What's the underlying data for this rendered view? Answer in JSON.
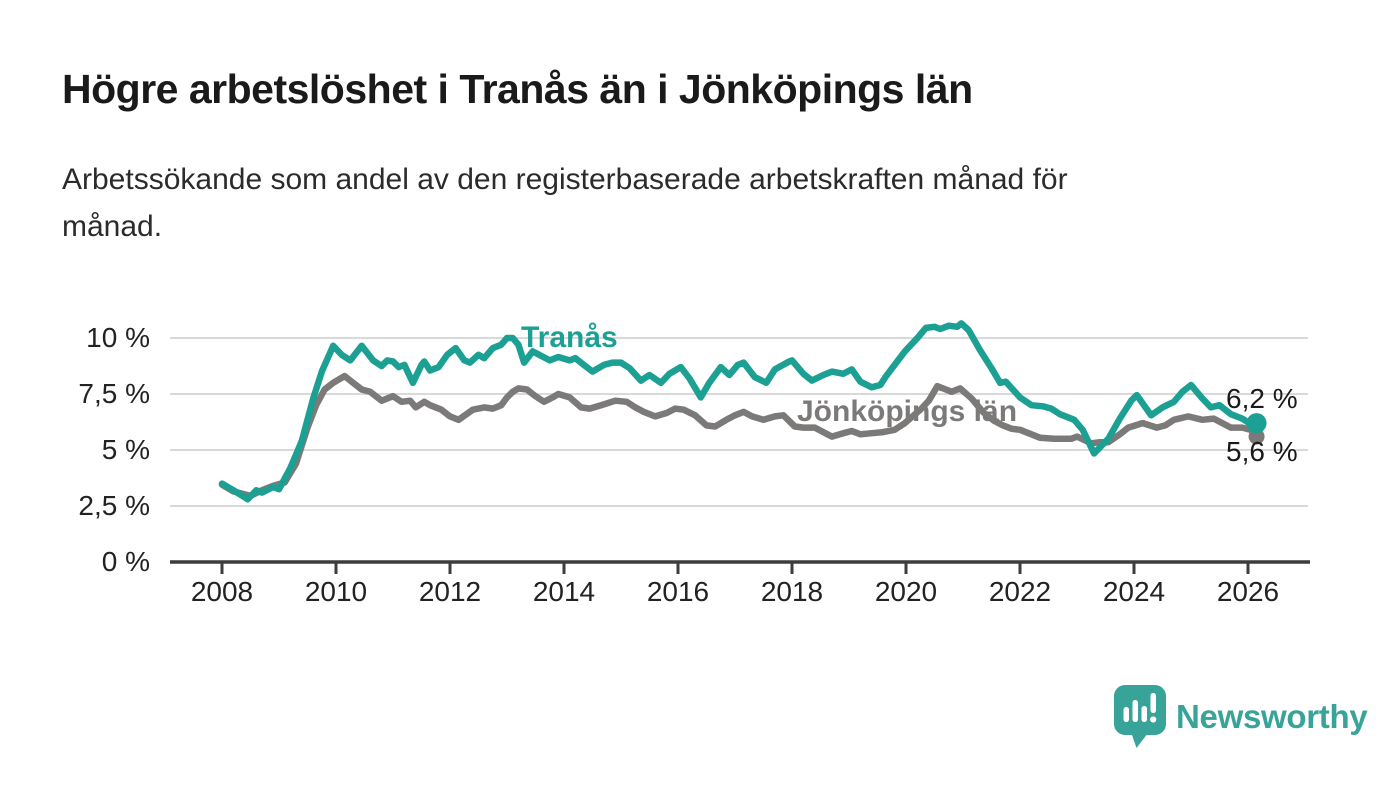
{
  "header": {
    "title": "Högre arbetslöshet i Tranås än i Jönköpings län",
    "subtitle_lines": [
      "Arbetssökande som andel av den registerbaserade arbetskraften månad för",
      "månad."
    ]
  },
  "chart_data": {
    "type": "line",
    "title": "Högre arbetslöshet i Tranås än i Jönköpings län",
    "subtitle": "Arbetssökande som andel av den registerbaserade arbetskraften månad för månad.",
    "unit": "%",
    "grid": true,
    "legend_position": "inline-labels",
    "grid_color": "#d9d9d9",
    "axis_color": "#3d3d3d",
    "text_color": "#222222",
    "end_label_color": "#1a1a1a",
    "x_ticks": [
      2008,
      2010,
      2012,
      2014,
      2016,
      2018,
      2020,
      2022,
      2024,
      2026
    ],
    "x_tick_labels": [
      "2008",
      "2010",
      "2012",
      "2014",
      "2016",
      "2018",
      "2020",
      "2022",
      "2024",
      "2026"
    ],
    "xlim": [
      2007.1,
      2027.1
    ],
    "y_ticks": [
      0,
      2.5,
      5,
      7.5,
      10
    ],
    "y_tick_labels": [
      "0 %",
      "2,5 %",
      "5 %",
      "7,5 %",
      "10 %"
    ],
    "ylim": [
      0,
      11.2
    ],
    "series": [
      {
        "name": "Tranås",
        "color": "#1ba093",
        "end_label": "6,2 %",
        "end_value": 6.2,
        "x": [
          2008.0,
          2008.2,
          2008.45,
          2008.6,
          2008.7,
          2008.9,
          2009.0,
          2009.2,
          2009.4,
          2009.6,
          2009.75,
          2009.95,
          2010.1,
          2010.25,
          2010.45,
          2010.65,
          2010.8,
          2010.9,
          2011.0,
          2011.1,
          2011.2,
          2011.35,
          2011.5,
          2011.55,
          2011.65,
          2011.8,
          2011.95,
          2012.1,
          2012.25,
          2012.35,
          2012.5,
          2012.6,
          2012.75,
          2012.9,
          2013.0,
          2013.1,
          2013.2,
          2013.3,
          2013.45,
          2013.6,
          2013.75,
          2013.9,
          2014.1,
          2014.2,
          2014.35,
          2014.5,
          2014.7,
          2014.85,
          2015.0,
          2015.15,
          2015.35,
          2015.5,
          2015.7,
          2015.85,
          2016.05,
          2016.2,
          2016.4,
          2016.55,
          2016.75,
          2016.9,
          2017.05,
          2017.15,
          2017.35,
          2017.55,
          2017.7,
          2017.95,
          2018.0,
          2018.2,
          2018.35,
          2018.55,
          2018.7,
          2018.9,
          2019.05,
          2019.2,
          2019.4,
          2019.55,
          2019.65,
          2019.8,
          2019.98,
          2020.2,
          2020.35,
          2020.5,
          2020.6,
          2020.75,
          2020.9,
          2020.97,
          2021.1,
          2021.3,
          2021.5,
          2021.65,
          2021.75,
          2022.0,
          2022.2,
          2022.4,
          2022.55,
          2022.7,
          2022.95,
          2023.1,
          2023.3,
          2023.55,
          2023.75,
          2023.95,
          2024.05,
          2024.3,
          2024.5,
          2024.7,
          2024.85,
          2025.0,
          2025.2,
          2025.35,
          2025.5,
          2025.7,
          2025.9,
          2026.05,
          2026.15
        ],
        "values": [
          3.5,
          3.2,
          2.8,
          3.2,
          3.1,
          3.35,
          3.25,
          4.2,
          5.4,
          7.3,
          8.5,
          9.65,
          9.25,
          9.0,
          9.65,
          9.0,
          8.75,
          9.0,
          8.95,
          8.7,
          8.8,
          8.0,
          8.8,
          8.95,
          8.55,
          8.7,
          9.25,
          9.55,
          9.0,
          8.9,
          9.25,
          9.1,
          9.55,
          9.7,
          10.0,
          10.0,
          9.7,
          8.9,
          9.4,
          9.2,
          9.0,
          9.15,
          9.0,
          9.1,
          8.8,
          8.5,
          8.8,
          8.9,
          8.9,
          8.65,
          8.1,
          8.35,
          8.0,
          8.4,
          8.7,
          8.2,
          7.35,
          8.0,
          8.7,
          8.35,
          8.8,
          8.9,
          8.25,
          8.0,
          8.6,
          8.95,
          9.0,
          8.4,
          8.1,
          8.35,
          8.5,
          8.4,
          8.6,
          8.05,
          7.8,
          7.9,
          8.3,
          8.8,
          9.4,
          10.0,
          10.45,
          10.5,
          10.4,
          10.55,
          10.5,
          10.65,
          10.35,
          9.45,
          8.65,
          8.0,
          8.05,
          7.35,
          7.0,
          6.95,
          6.85,
          6.6,
          6.35,
          5.9,
          4.85,
          5.5,
          6.4,
          7.2,
          7.45,
          6.55,
          6.9,
          7.15,
          7.6,
          7.9,
          7.3,
          6.9,
          7.0,
          6.6,
          6.4,
          6.15,
          6.2
        ]
      },
      {
        "name": "Jönköpings län",
        "color": "#7c7979",
        "end_label": "5,6 %",
        "end_value": 5.6,
        "x": [
          2008.0,
          2008.2,
          2008.5,
          2008.7,
          2008.9,
          2009.1,
          2009.3,
          2009.5,
          2009.65,
          2009.8,
          2009.95,
          2010.15,
          2010.3,
          2010.45,
          2010.6,
          2010.8,
          2011.0,
          2011.15,
          2011.3,
          2011.4,
          2011.55,
          2011.65,
          2011.85,
          2012.0,
          2012.15,
          2012.4,
          2012.6,
          2012.75,
          2012.9,
          2013.0,
          2013.1,
          2013.2,
          2013.35,
          2013.5,
          2013.65,
          2013.8,
          2013.9,
          2014.1,
          2014.3,
          2014.45,
          2014.65,
          2014.9,
          2015.1,
          2015.25,
          2015.4,
          2015.6,
          2015.8,
          2015.95,
          2016.1,
          2016.3,
          2016.5,
          2016.65,
          2016.85,
          2017.0,
          2017.15,
          2017.3,
          2017.5,
          2017.7,
          2017.85,
          2018.05,
          2018.2,
          2018.4,
          2018.55,
          2018.7,
          2018.9,
          2019.05,
          2019.2,
          2019.4,
          2019.6,
          2019.8,
          2019.98,
          2020.25,
          2020.4,
          2020.55,
          2020.7,
          2020.8,
          2020.95,
          2021.15,
          2021.35,
          2021.55,
          2021.7,
          2021.85,
          2022.0,
          2022.2,
          2022.35,
          2022.6,
          2022.9,
          2023.0,
          2023.25,
          2023.4,
          2023.55,
          2023.75,
          2023.9,
          2024.15,
          2024.4,
          2024.55,
          2024.7,
          2024.95,
          2025.2,
          2025.4,
          2025.55,
          2025.7,
          2025.9,
          2026.05,
          2026.15
        ],
        "values": [
          3.45,
          3.15,
          2.95,
          3.2,
          3.4,
          3.55,
          4.4,
          6.0,
          7.0,
          7.7,
          8.0,
          8.3,
          8.0,
          7.7,
          7.6,
          7.2,
          7.4,
          7.15,
          7.2,
          6.9,
          7.15,
          7.0,
          6.8,
          6.5,
          6.35,
          6.8,
          6.9,
          6.85,
          7.0,
          7.35,
          7.6,
          7.75,
          7.7,
          7.4,
          7.15,
          7.35,
          7.5,
          7.35,
          6.9,
          6.85,
          7.0,
          7.2,
          7.15,
          6.9,
          6.7,
          6.5,
          6.65,
          6.85,
          6.8,
          6.55,
          6.1,
          6.05,
          6.35,
          6.55,
          6.7,
          6.5,
          6.35,
          6.5,
          6.55,
          6.05,
          6.0,
          6.0,
          5.8,
          5.6,
          5.75,
          5.85,
          5.7,
          5.75,
          5.8,
          5.9,
          6.2,
          6.8,
          7.2,
          7.85,
          7.7,
          7.6,
          7.75,
          7.3,
          6.7,
          6.3,
          6.1,
          5.95,
          5.9,
          5.7,
          5.55,
          5.5,
          5.5,
          5.6,
          5.3,
          5.35,
          5.35,
          5.7,
          6.0,
          6.2,
          6.0,
          6.1,
          6.35,
          6.5,
          6.35,
          6.4,
          6.2,
          6.0,
          6.0,
          5.9,
          5.6
        ]
      }
    ]
  },
  "footer": {
    "brand": "Newsworthy",
    "brand_color": "#38a398",
    "logo_icon": "bar-chart-speech-bubble-icon"
  }
}
